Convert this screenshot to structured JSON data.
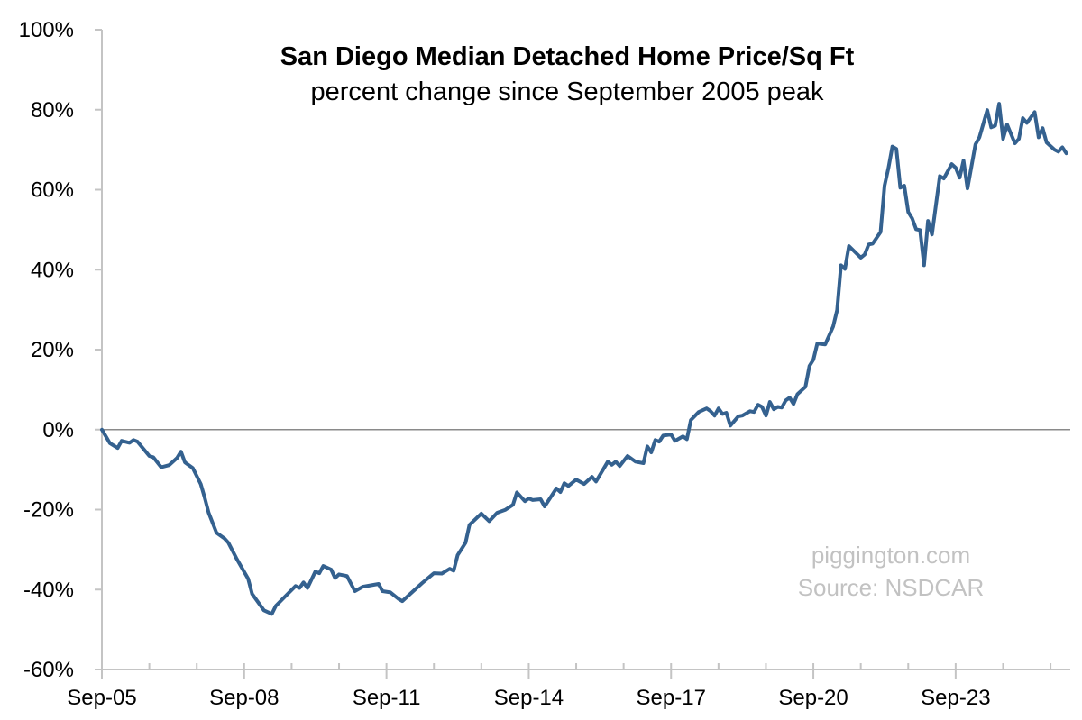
{
  "chart_data": {
    "type": "line",
    "title": "San Diego Median Detached Home Price/Sq Ft",
    "subtitle": "percent change since September 2005 peak",
    "xlabel": "",
    "ylabel": "",
    "xlim": [
      "2005-09",
      "2026-02"
    ],
    "ylim": [
      -60,
      100
    ],
    "x_tick_labels": [
      "Sep-05",
      "Sep-08",
      "Sep-11",
      "Sep-14",
      "Sep-17",
      "Sep-20",
      "Sep-23"
    ],
    "y_tick_labels": [
      "-60%",
      "-40%",
      "-20%",
      "0%",
      "20%",
      "40%",
      "60%",
      "80%",
      "100%"
    ],
    "y_ticks": [
      -60,
      -40,
      -20,
      0,
      20,
      40,
      60,
      80,
      100
    ],
    "grid": false,
    "zero_line": true,
    "annotations": [
      "piggington.com",
      "Source: NSDCAR"
    ],
    "line_color": "#34618f",
    "series": [
      {
        "points": [
          [
            "2005-09",
            0
          ],
          [
            "2005-11",
            -3.4
          ],
          [
            "2006-01",
            -4.6
          ],
          [
            "2006-02",
            -2.8
          ],
          [
            "2006-04",
            -3.3
          ],
          [
            "2006-05",
            -2.6
          ],
          [
            "2006-06",
            -3.0
          ],
          [
            "2006-09",
            -6.6
          ],
          [
            "2006-10",
            -6.9
          ],
          [
            "2006-12",
            -9.4
          ],
          [
            "2007-02",
            -8.9
          ],
          [
            "2007-04",
            -7.1
          ],
          [
            "2007-05",
            -5.5
          ],
          [
            "2007-06",
            -8.2
          ],
          [
            "2007-08",
            -9.6
          ],
          [
            "2007-10",
            -13.6
          ],
          [
            "2007-11",
            -17.0
          ],
          [
            "2007-12",
            -20.8
          ],
          [
            "2008-02",
            -25.8
          ],
          [
            "2008-04",
            -27.2
          ],
          [
            "2008-05",
            -28.3
          ],
          [
            "2008-07",
            -32.1
          ],
          [
            "2008-10",
            -37.3
          ],
          [
            "2008-11",
            -41.1
          ],
          [
            "2009-02",
            -45.2
          ],
          [
            "2009-04",
            -46.1
          ],
          [
            "2009-05",
            -44.1
          ],
          [
            "2009-08",
            -41.1
          ],
          [
            "2009-10",
            -39.1
          ],
          [
            "2009-11",
            -39.6
          ],
          [
            "2009-12",
            -38.2
          ],
          [
            "2010-01",
            -39.6
          ],
          [
            "2010-03",
            -35.5
          ],
          [
            "2010-04",
            -35.9
          ],
          [
            "2010-05",
            -34.1
          ],
          [
            "2010-07",
            -35.0
          ],
          [
            "2010-08",
            -37.1
          ],
          [
            "2010-09",
            -36.2
          ],
          [
            "2010-11",
            -36.6
          ],
          [
            "2011-01",
            -40.4
          ],
          [
            "2011-03",
            -39.3
          ],
          [
            "2011-07",
            -38.6
          ],
          [
            "2011-08",
            -40.4
          ],
          [
            "2011-10",
            -40.7
          ],
          [
            "2011-12",
            -42.3
          ],
          [
            "2012-01",
            -42.9
          ],
          [
            "2012-03",
            -41.1
          ],
          [
            "2012-06",
            -38.4
          ],
          [
            "2012-09",
            -35.9
          ],
          [
            "2012-11",
            -36.0
          ],
          [
            "2013-01",
            -34.8
          ],
          [
            "2013-02",
            -35.3
          ],
          [
            "2013-03",
            -31.4
          ],
          [
            "2013-05",
            -28.3
          ],
          [
            "2013-06",
            -23.8
          ],
          [
            "2013-09",
            -21.0
          ],
          [
            "2013-11",
            -22.9
          ],
          [
            "2014-01",
            -20.8
          ],
          [
            "2014-03",
            -20.1
          ],
          [
            "2014-05",
            -18.8
          ],
          [
            "2014-06",
            -15.7
          ],
          [
            "2014-08",
            -17.9
          ],
          [
            "2014-09",
            -17.2
          ],
          [
            "2014-10",
            -17.6
          ],
          [
            "2014-12",
            -17.4
          ],
          [
            "2015-01",
            -19.2
          ],
          [
            "2015-04",
            -14.7
          ],
          [
            "2015-05",
            -15.6
          ],
          [
            "2015-06",
            -13.4
          ],
          [
            "2015-07",
            -14.1
          ],
          [
            "2015-09",
            -12.5
          ],
          [
            "2015-11",
            -13.6
          ],
          [
            "2016-01",
            -11.8
          ],
          [
            "2016-02",
            -13.0
          ],
          [
            "2016-05",
            -8.0
          ],
          [
            "2016-06",
            -8.8
          ],
          [
            "2016-07",
            -8.0
          ],
          [
            "2016-08",
            -9.1
          ],
          [
            "2016-10",
            -6.6
          ],
          [
            "2016-12",
            -8.0
          ],
          [
            "2017-02",
            -8.4
          ],
          [
            "2017-03",
            -4.2
          ],
          [
            "2017-04",
            -5.7
          ],
          [
            "2017-05",
            -2.6
          ],
          [
            "2017-06",
            -3.0
          ],
          [
            "2017-07",
            -1.5
          ],
          [
            "2017-09",
            -1.2
          ],
          [
            "2017-10",
            -2.8
          ],
          [
            "2017-12",
            -1.7
          ],
          [
            "2018-01",
            -2.4
          ],
          [
            "2018-02",
            2.4
          ],
          [
            "2018-04",
            4.4
          ],
          [
            "2018-06",
            5.3
          ],
          [
            "2018-07",
            4.6
          ],
          [
            "2018-08",
            3.5
          ],
          [
            "2018-09",
            5.3
          ],
          [
            "2018-10",
            3.9
          ],
          [
            "2018-11",
            4.2
          ],
          [
            "2018-12",
            1.0
          ],
          [
            "2019-02",
            3.3
          ],
          [
            "2019-03",
            3.5
          ],
          [
            "2019-05",
            4.6
          ],
          [
            "2019-06",
            4.4
          ],
          [
            "2019-07",
            6.2
          ],
          [
            "2019-08",
            5.7
          ],
          [
            "2019-09",
            3.5
          ],
          [
            "2019-10",
            6.9
          ],
          [
            "2019-11",
            5.1
          ],
          [
            "2019-12",
            5.7
          ],
          [
            "2020-01",
            5.5
          ],
          [
            "2020-02",
            7.3
          ],
          [
            "2020-03",
            8.0
          ],
          [
            "2020-04",
            6.4
          ],
          [
            "2020-05",
            8.9
          ],
          [
            "2020-07",
            10.7
          ],
          [
            "2020-08",
            15.9
          ],
          [
            "2020-09",
            17.5
          ],
          [
            "2020-10",
            21.5
          ],
          [
            "2020-12",
            21.3
          ],
          [
            "2021-02",
            25.8
          ],
          [
            "2021-03",
            29.9
          ],
          [
            "2021-04",
            41.1
          ],
          [
            "2021-05",
            40.2
          ],
          [
            "2021-06",
            45.9
          ],
          [
            "2021-09",
            43.0
          ],
          [
            "2021-10",
            43.8
          ],
          [
            "2021-11",
            46.3
          ],
          [
            "2021-12",
            46.5
          ],
          [
            "2022-02",
            49.4
          ],
          [
            "2022-03",
            61.0
          ],
          [
            "2022-04",
            65.5
          ],
          [
            "2022-05",
            70.8
          ],
          [
            "2022-06",
            70.2
          ],
          [
            "2022-07",
            60.5
          ],
          [
            "2022-08",
            61.0
          ],
          [
            "2022-09",
            54.4
          ],
          [
            "2022-10",
            52.8
          ],
          [
            "2022-11",
            50.1
          ],
          [
            "2022-12",
            49.9
          ],
          [
            "2023-01",
            41.1
          ],
          [
            "2023-02",
            52.2
          ],
          [
            "2023-03",
            48.8
          ],
          [
            "2023-04",
            56.2
          ],
          [
            "2023-05",
            63.4
          ],
          [
            "2023-06",
            62.8
          ],
          [
            "2023-08",
            66.4
          ],
          [
            "2023-09",
            65.5
          ],
          [
            "2023-10",
            63.0
          ],
          [
            "2023-11",
            67.3
          ],
          [
            "2023-12",
            60.3
          ],
          [
            "2024-02",
            71.3
          ],
          [
            "2024-03",
            73.1
          ],
          [
            "2024-05",
            79.9
          ],
          [
            "2024-06",
            75.6
          ],
          [
            "2024-07",
            76.0
          ],
          [
            "2024-08",
            81.5
          ],
          [
            "2024-09",
            72.7
          ],
          [
            "2024-10",
            76.3
          ],
          [
            "2024-12",
            71.6
          ],
          [
            "2025-01",
            72.7
          ],
          [
            "2025-02",
            77.9
          ],
          [
            "2025-03",
            76.7
          ],
          [
            "2025-05",
            79.4
          ],
          [
            "2025-06",
            73.1
          ],
          [
            "2025-07",
            75.4
          ],
          [
            "2025-08",
            71.8
          ],
          [
            "2025-10",
            70.0
          ],
          [
            "2025-11",
            69.5
          ],
          [
            "2025-12",
            70.6
          ],
          [
            "2026-01",
            69.1
          ]
        ]
      }
    ]
  }
}
